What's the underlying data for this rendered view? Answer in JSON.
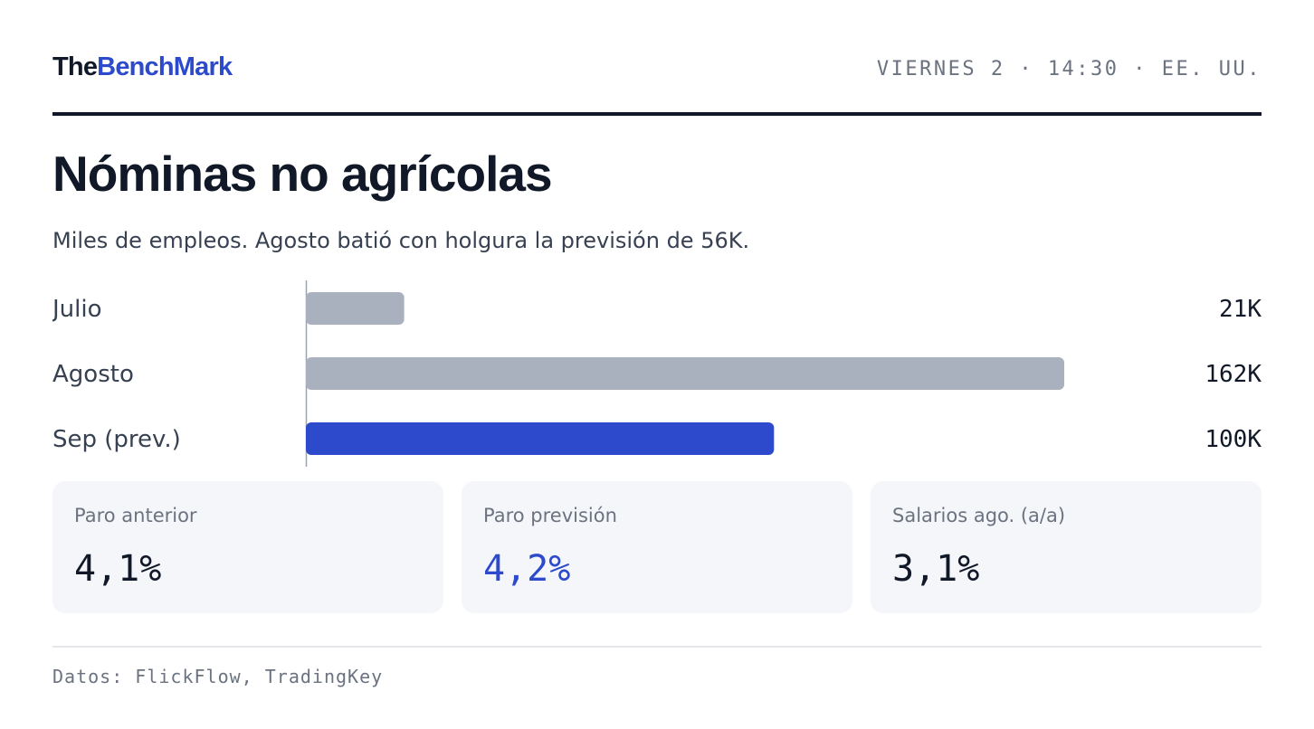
{
  "header": {
    "logo_part1": "The",
    "logo_part2": "BenchMark",
    "dateline": "VIERNES 2 · 14:30 · EE. UU."
  },
  "title": "Nóminas no agrícolas",
  "subtitle": "Miles de empleos. Agosto batió con holgura la previsión de 56K.",
  "chart_data": {
    "type": "bar",
    "orientation": "horizontal",
    "categories": [
      "Julio",
      "Agosto",
      "Sep (prev.)"
    ],
    "values": [
      21,
      162,
      100
    ],
    "value_labels": [
      "21K",
      "162K",
      "100K"
    ],
    "colors": [
      "#a9b1be",
      "#a9b1be",
      "#2c4acb"
    ],
    "xlim": [
      0,
      162
    ],
    "grid": false
  },
  "cards": [
    {
      "label": "Paro anterior",
      "value": "4,1%",
      "accent": false
    },
    {
      "label": "Paro previsión",
      "value": "4,2%",
      "accent": true
    },
    {
      "label": "Salarios ago. (a/a)",
      "value": "3,1%",
      "accent": false
    }
  ],
  "footer": "Datos: FlickFlow, TradingKey",
  "colors": {
    "brand": "#2c4acb",
    "muted_bar": "#a9b1be",
    "ink": "#111827"
  }
}
